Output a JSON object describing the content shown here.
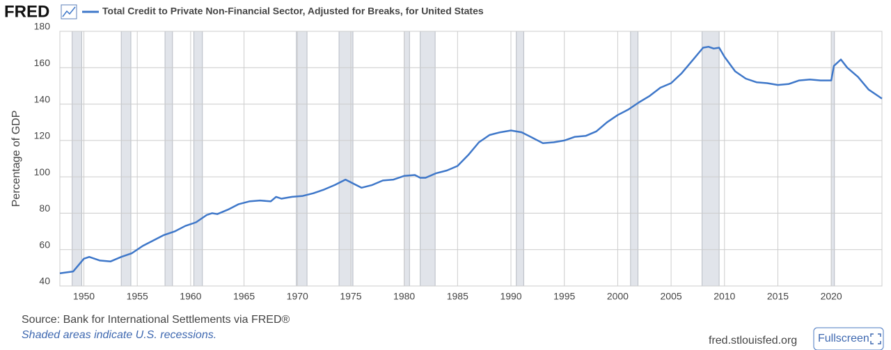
{
  "logo": "FRED",
  "chart_data": {
    "type": "line",
    "series": [
      {
        "name": "Total Credit to Private Non-Financial Sector, Adjusted for Breaks, for United States",
        "color": "#3e77c9",
        "values": [
          47,
          48,
          55,
          56,
          54,
          53.5,
          56,
          58,
          62,
          65,
          68,
          70,
          73,
          75,
          79,
          80,
          79.5,
          82,
          85,
          86.5,
          87,
          86.5,
          89,
          88,
          89,
          89.5,
          91,
          93,
          95.5,
          98.5,
          97,
          94,
          95.5,
          98,
          98.5,
          100.5,
          101,
          99.5,
          99.5,
          102,
          103.5,
          106,
          112,
          119,
          123,
          124.5,
          125.5,
          124.5,
          121.5,
          118.5,
          119,
          120,
          122,
          122.5,
          125,
          130,
          134,
          137,
          141,
          144.5,
          149,
          151.5,
          157,
          164,
          171,
          171.5,
          170.5,
          171,
          166,
          158,
          154,
          152,
          151.5,
          150.5,
          151,
          153,
          153.5,
          153,
          153,
          161,
          164.5,
          160,
          155,
          148,
          144,
          143
        ]
      }
    ],
    "x": [
      1947.75,
      1949,
      1950,
      1950.5,
      1951.5,
      1952.5,
      1953.5,
      1954.5,
      1955.5,
      1956.5,
      1957.5,
      1958.5,
      1959.5,
      1960.5,
      1961.5,
      1962,
      1962.5,
      1963.5,
      1964.5,
      1965.5,
      1966.5,
      1967.5,
      1968,
      1968.5,
      1969.5,
      1970.5,
      1971.5,
      1972.5,
      1973.5,
      1974.5,
      1975,
      1976,
      1977,
      1978,
      1979,
      1980,
      1981,
      1981.5,
      1982,
      1983,
      1984,
      1985,
      1986,
      1987,
      1988,
      1989,
      1990,
      1991,
      1992,
      1993,
      1994,
      1995,
      1996,
      1997,
      1998,
      1999,
      2000,
      2001,
      2002,
      2003,
      2004,
      2005,
      2006,
      2007,
      2008,
      2008.5,
      2009,
      2009.5,
      2010,
      2011,
      2012,
      2013,
      2014,
      2015,
      2016,
      2017,
      2018,
      2019,
      2020,
      2020.25,
      2020.9,
      2021.5,
      2022.5,
      2023.5,
      2024.5,
      2024.75
    ],
    "recessions": [
      [
        1948.9,
        1949.8
      ],
      [
        1953.5,
        1954.4
      ],
      [
        1957.6,
        1958.3
      ],
      [
        1960.3,
        1961.1
      ],
      [
        1969.9,
        1970.9
      ],
      [
        1973.9,
        1975.2
      ],
      [
        1980.0,
        1980.5
      ],
      [
        1981.5,
        1982.9
      ],
      [
        1990.5,
        1991.2
      ],
      [
        2001.2,
        2001.9
      ],
      [
        2007.9,
        2009.5
      ],
      [
        2020.0,
        2020.3
      ]
    ],
    "ylabel": "Percentage of GDP",
    "xlim": [
      1947.75,
      2024.75
    ],
    "xticks": [
      1950,
      1955,
      1960,
      1965,
      1970,
      1975,
      1980,
      1985,
      1990,
      1995,
      2000,
      2005,
      2010,
      2015,
      2020
    ],
    "ylim": [
      40,
      180
    ],
    "yticks": [
      40,
      60,
      80,
      100,
      120,
      140,
      160,
      180
    ],
    "grid": true
  },
  "source": "Source: Bank for International Settlements via FRED®",
  "note": "Shaded areas indicate U.S. recessions.",
  "url": "fred.stlouisfed.org",
  "button": "Fullscreen"
}
